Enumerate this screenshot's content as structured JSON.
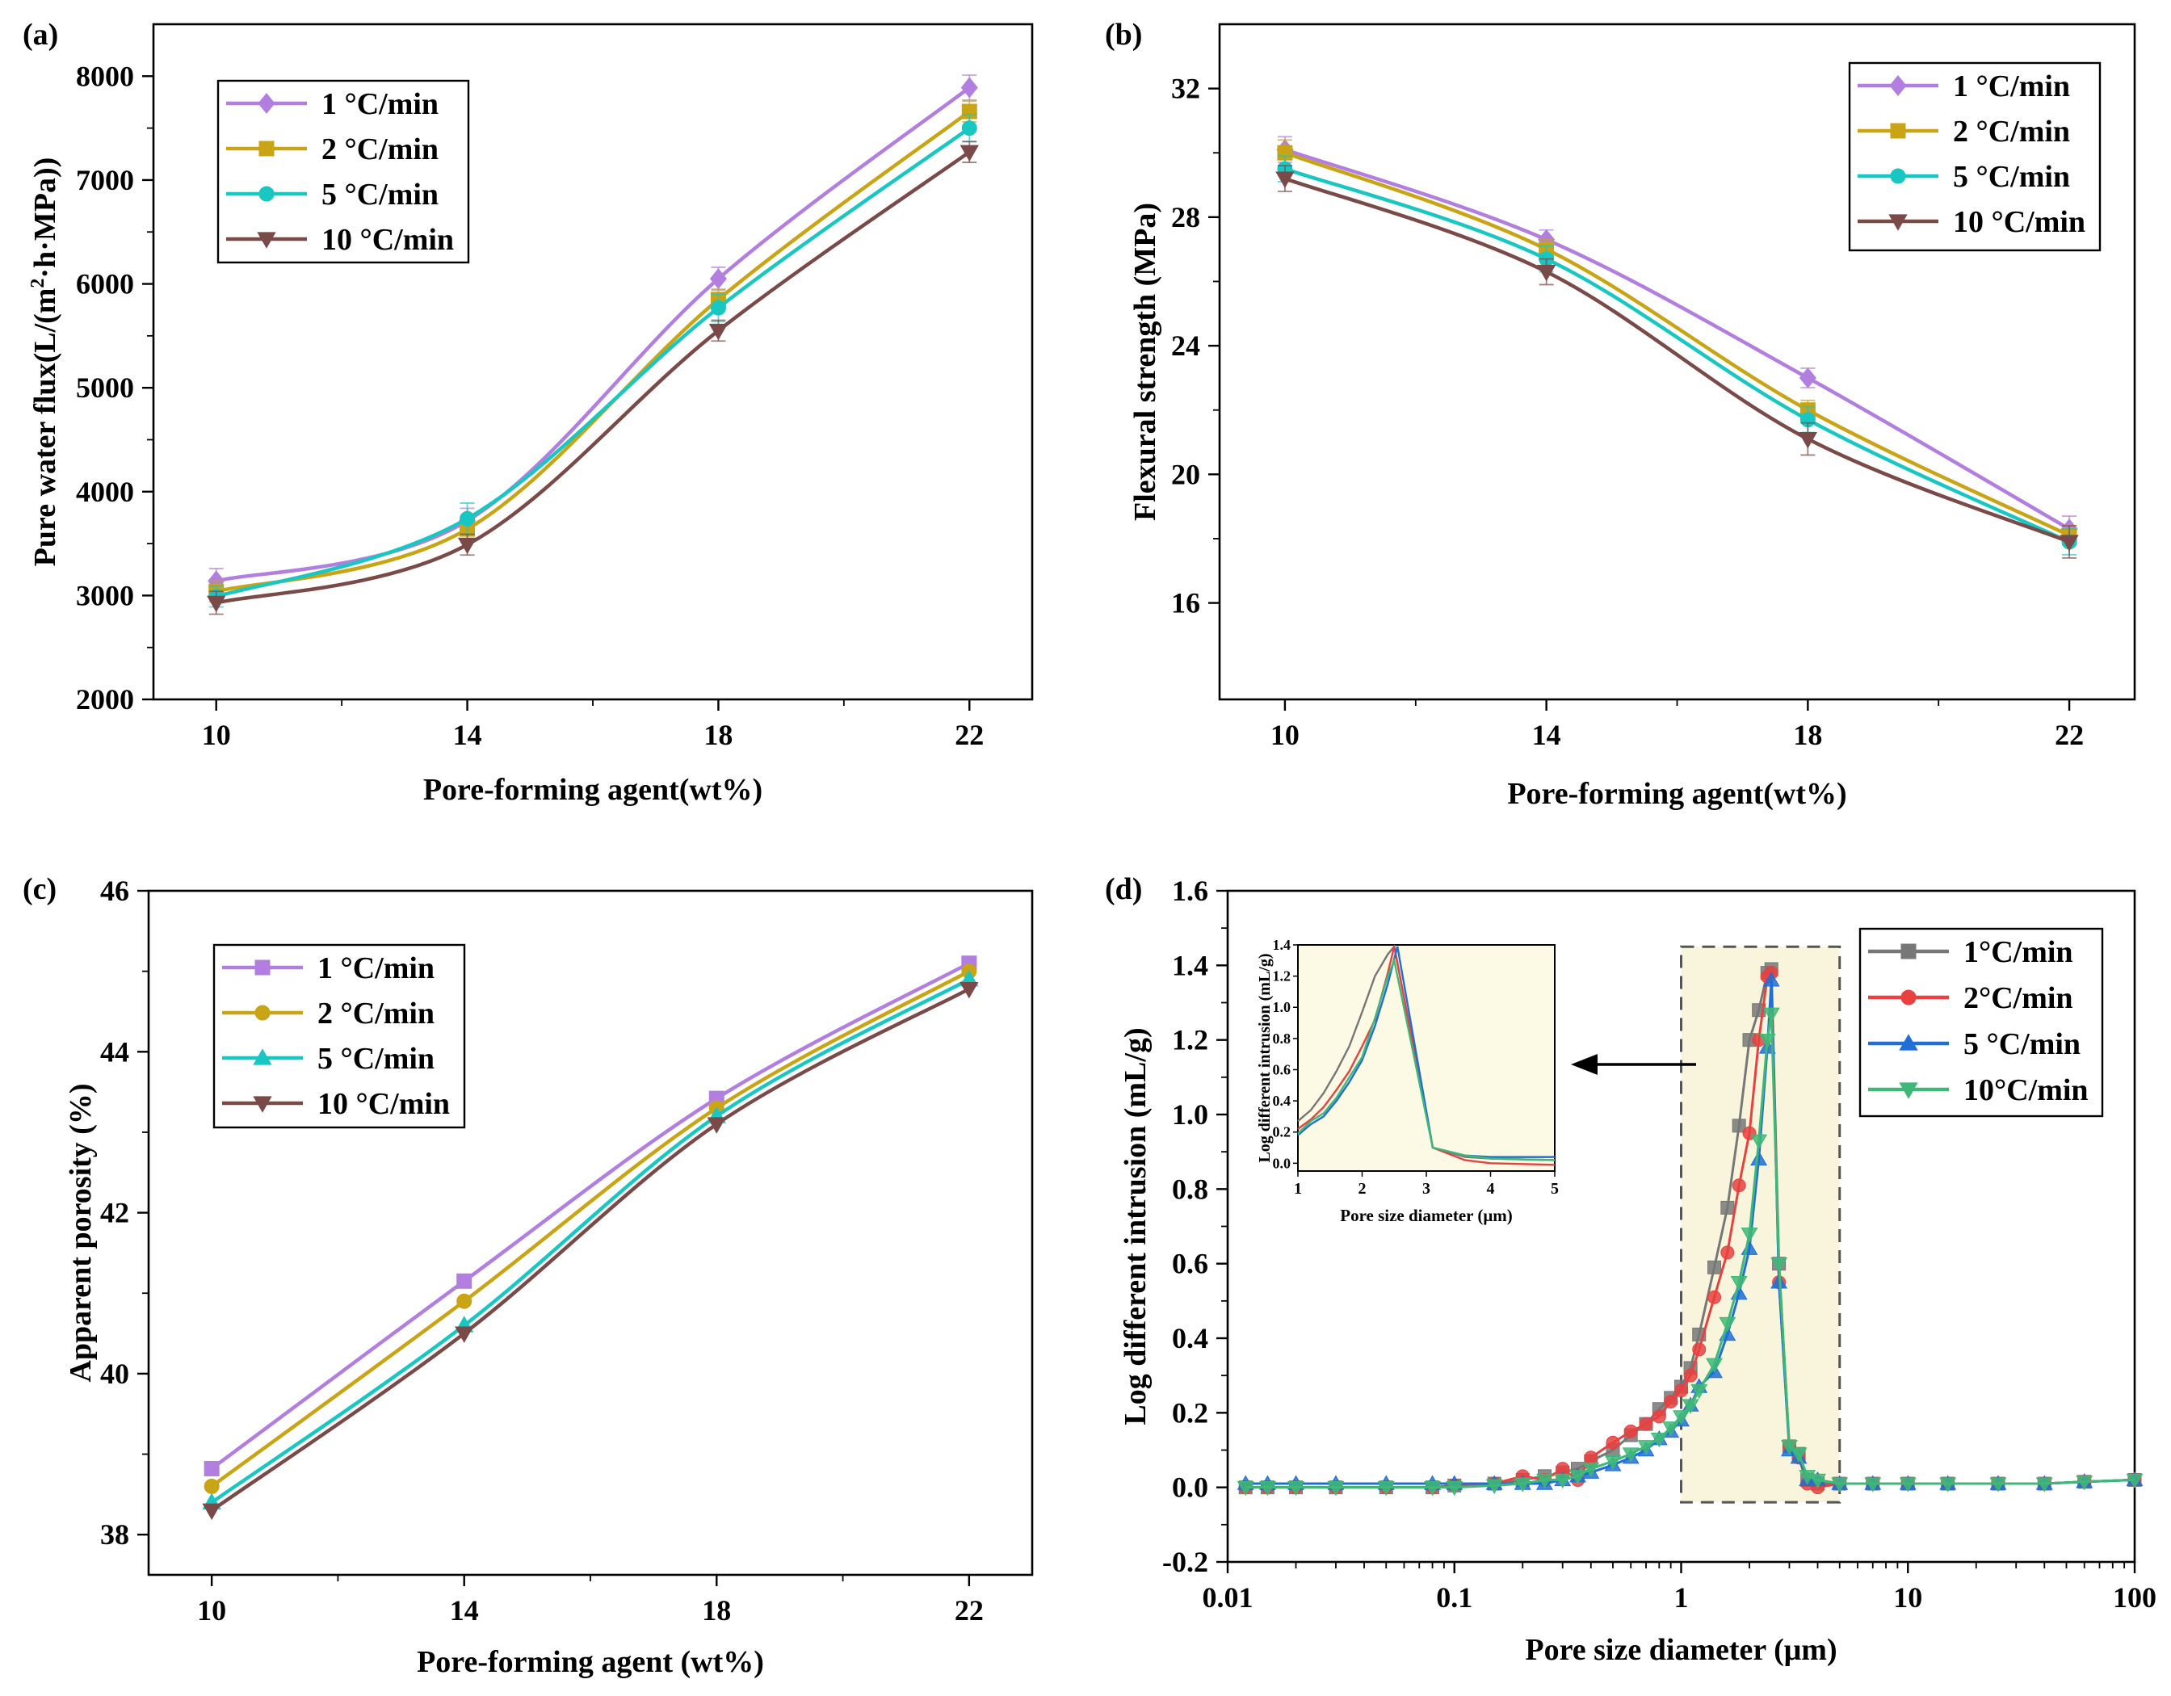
{
  "chart_data": [
    {
      "panel": "(a)",
      "type": "line",
      "xlabel": "Pore-forming agent(wt%)",
      "ylabel": "Pure water flux(L/(m²·h·MPa))",
      "ylabel_parts": [
        "Pure water flux(L/(m",
        "2",
        "·h·MPa))"
      ],
      "x": [
        10,
        14,
        18,
        22
      ],
      "xlim": [
        9,
        23
      ],
      "ylim": [
        2000,
        8500
      ],
      "xticks": [
        10,
        14,
        18,
        22
      ],
      "yticks": [
        2000,
        3000,
        4000,
        5000,
        6000,
        7000,
        8000
      ],
      "legend_position": "top-left",
      "series": [
        {
          "name": "1 °C/min",
          "values": [
            3140,
            3720,
            6050,
            7890
          ],
          "err": [
            120,
            120,
            110,
            120
          ],
          "color": "#b27fe0",
          "marker": "diamond"
        },
        {
          "name": "2 °C/min",
          "values": [
            3040,
            3640,
            5850,
            7660
          ],
          "err": [
            100,
            100,
            100,
            100
          ],
          "color": "#c9a414",
          "marker": "square"
        },
        {
          "name": "5 °C/min",
          "values": [
            2990,
            3740,
            5770,
            7500
          ],
          "err": [
            100,
            150,
            130,
            130
          ],
          "color": "#19c7c2",
          "marker": "circle"
        },
        {
          "name": "10 °C/min",
          "values": [
            2930,
            3490,
            5550,
            7270
          ],
          "err": [
            110,
            100,
            100,
            100
          ],
          "color": "#7a4a48",
          "marker": "triangle-down"
        }
      ]
    },
    {
      "panel": "(b)",
      "type": "line",
      "xlabel": "Pore-forming agent(wt%)",
      "ylabel": "Flexural strength (MPa)",
      "x": [
        10,
        14,
        18,
        22
      ],
      "xlim": [
        9,
        23
      ],
      "ylim": [
        13,
        34
      ],
      "xticks": [
        10,
        14,
        18,
        22
      ],
      "yticks": [
        16,
        20,
        24,
        28,
        32
      ],
      "legend_position": "top-right",
      "series": [
        {
          "name": "1 °C/min",
          "values": [
            30.1,
            27.3,
            23.0,
            18.3
          ],
          "err": [
            0.4,
            0.3,
            0.3,
            0.4
          ],
          "color": "#b27fe0",
          "marker": "diamond"
        },
        {
          "name": "2 °C/min",
          "values": [
            30.0,
            27.0,
            22.0,
            18.1
          ],
          "err": [
            0.4,
            0.3,
            0.3,
            0.3
          ],
          "color": "#c9a414",
          "marker": "square"
        },
        {
          "name": "5 °C/min",
          "values": [
            29.5,
            26.7,
            21.7,
            17.9
          ],
          "err": [
            0.4,
            0.4,
            0.4,
            0.4
          ],
          "color": "#19c7c2",
          "marker": "circle"
        },
        {
          "name": "10 °C/min",
          "values": [
            29.2,
            26.3,
            21.1,
            17.9
          ],
          "err": [
            0.4,
            0.4,
            0.5,
            0.5
          ],
          "color": "#7a4a48",
          "marker": "triangle-down"
        }
      ]
    },
    {
      "panel": "(c)",
      "type": "line",
      "xlabel": "Pore-forming agent (wt%)",
      "ylabel": "Apparent porosity (%)",
      "x": [
        10,
        14,
        18,
        22
      ],
      "xlim": [
        9,
        23
      ],
      "ylim": [
        37.5,
        46
      ],
      "xticks": [
        10,
        14,
        18,
        22
      ],
      "yticks": [
        38,
        40,
        42,
        44,
        46
      ],
      "legend_position": "top-left",
      "series": [
        {
          "name": "1 °C/min",
          "values": [
            38.82,
            41.15,
            43.42,
            45.1
          ],
          "color": "#b27fe0",
          "marker": "square"
        },
        {
          "name": "2 °C/min",
          "values": [
            38.6,
            40.9,
            43.3,
            45.0
          ],
          "color": "#c9a414",
          "marker": "circle"
        },
        {
          "name": "5 °C/min",
          "values": [
            38.4,
            40.6,
            43.2,
            44.9
          ],
          "color": "#19c7c2",
          "marker": "triangle-up"
        },
        {
          "name": "10 °C/min",
          "values": [
            38.3,
            40.5,
            43.1,
            44.78
          ],
          "color": "#7a4a48",
          "marker": "triangle-down"
        }
      ]
    },
    {
      "panel": "(d)",
      "type": "line",
      "xscale": "log",
      "xlabel": "Pore size diameter (μm)",
      "ylabel": "Log different intrusion (mL/g)",
      "xlim": [
        0.01,
        100
      ],
      "ylim": [
        -0.2,
        1.6
      ],
      "xticks": [
        0.01,
        0.1,
        1,
        10,
        100
      ],
      "xtick_labels": [
        "0.01",
        "0.1",
        "1",
        "10",
        "100"
      ],
      "yticks": [
        -0.2,
        0.0,
        0.2,
        0.4,
        0.6,
        0.8,
        1.0,
        1.2,
        1.4,
        1.6
      ],
      "ytick_labels": [
        "-0.2",
        "0.0",
        "0.2",
        "0.4",
        "0.6",
        "0.8",
        "1.0",
        "1.2",
        "1.4",
        "1.6"
      ],
      "legend_position": "top-right",
      "highlight_region": {
        "x": [
          1,
          5
        ],
        "y": [
          -0.04,
          1.45
        ],
        "color": "#f8f5dc"
      },
      "series": [
        {
          "name": "1°C/min",
          "color": "#777777",
          "marker": "square",
          "x": [
            0.012,
            0.015,
            0.02,
            0.03,
            0.05,
            0.08,
            0.1,
            0.15,
            0.2,
            0.25,
            0.3,
            0.35,
            0.4,
            0.5,
            0.6,
            0.7,
            0.8,
            0.9,
            1.0,
            1.1,
            1.2,
            1.4,
            1.6,
            1.8,
            2.0,
            2.2,
            2.4,
            2.5,
            2.7,
            3.0,
            3.3,
            3.6,
            4.0,
            5.0,
            7.0,
            10,
            15,
            25,
            40,
            60,
            100
          ],
          "y": [
            0.0,
            0.0,
            0.0,
            0.0,
            0.0,
            0.0,
            0.005,
            0.01,
            0.02,
            0.03,
            0.04,
            0.05,
            0.07,
            0.1,
            0.14,
            0.17,
            0.21,
            0.24,
            0.27,
            0.32,
            0.41,
            0.59,
            0.75,
            0.97,
            1.2,
            1.28,
            1.38,
            1.39,
            0.6,
            0.11,
            0.09,
            0.02,
            0.01,
            0.01,
            0.01,
            0.01,
            0.01,
            0.01,
            0.01,
            0.015,
            0.02
          ]
        },
        {
          "name": "2°C/min",
          "color": "#e8413f",
          "marker": "circle",
          "x": [
            0.012,
            0.015,
            0.02,
            0.03,
            0.05,
            0.08,
            0.1,
            0.15,
            0.2,
            0.25,
            0.3,
            0.35,
            0.4,
            0.5,
            0.6,
            0.7,
            0.8,
            0.9,
            1.0,
            1.1,
            1.2,
            1.4,
            1.6,
            1.8,
            2.0,
            2.2,
            2.4,
            2.5,
            2.7,
            3.0,
            3.3,
            3.6,
            4.0,
            5.0,
            7.0,
            10,
            15,
            25,
            40,
            60,
            100
          ],
          "y": [
            0.0,
            0.0,
            0.0,
            0.0,
            0.0,
            0.0,
            0.005,
            0.01,
            0.03,
            0.02,
            0.05,
            0.02,
            0.08,
            0.12,
            0.15,
            0.17,
            0.19,
            0.23,
            0.26,
            0.3,
            0.37,
            0.51,
            0.63,
            0.81,
            0.95,
            1.2,
            1.37,
            1.38,
            0.55,
            0.11,
            0.08,
            0.01,
            0.0,
            0.01,
            0.01,
            0.01,
            0.01,
            0.01,
            0.01,
            0.015,
            0.02
          ]
        },
        {
          "name": "5 °C/min",
          "color": "#1f6fd6",
          "marker": "triangle-up",
          "x": [
            0.012,
            0.015,
            0.02,
            0.03,
            0.05,
            0.08,
            0.1,
            0.15,
            0.2,
            0.25,
            0.3,
            0.35,
            0.4,
            0.5,
            0.6,
            0.7,
            0.8,
            0.9,
            1.0,
            1.1,
            1.2,
            1.4,
            1.6,
            1.8,
            2.0,
            2.2,
            2.4,
            2.5,
            2.7,
            3.0,
            3.3,
            3.6,
            4.0,
            5.0,
            7.0,
            10,
            15,
            25,
            40,
            60,
            100
          ],
          "y": [
            0.01,
            0.01,
            0.01,
            0.01,
            0.01,
            0.01,
            0.01,
            0.01,
            0.01,
            0.01,
            0.02,
            0.03,
            0.04,
            0.06,
            0.08,
            0.1,
            0.13,
            0.15,
            0.18,
            0.22,
            0.27,
            0.31,
            0.41,
            0.52,
            0.64,
            0.88,
            1.18,
            1.36,
            0.55,
            0.1,
            0.08,
            0.02,
            0.02,
            0.01,
            0.01,
            0.01,
            0.01,
            0.01,
            0.01,
            0.015,
            0.02
          ]
        },
        {
          "name": "10°C/min",
          "color": "#3fb877",
          "marker": "triangle-down",
          "x": [
            0.012,
            0.015,
            0.02,
            0.03,
            0.05,
            0.08,
            0.1,
            0.15,
            0.2,
            0.25,
            0.3,
            0.35,
            0.4,
            0.5,
            0.6,
            0.7,
            0.8,
            0.9,
            1.0,
            1.1,
            1.2,
            1.4,
            1.6,
            1.8,
            2.0,
            2.2,
            2.4,
            2.5,
            2.7,
            3.0,
            3.3,
            3.6,
            4.0,
            5.0,
            7.0,
            10,
            15,
            25,
            40,
            60,
            100
          ],
          "y": [
            0.0,
            0.0,
            0.0,
            0.0,
            0.0,
            0.0,
            0.0,
            0.005,
            0.01,
            0.02,
            0.02,
            0.03,
            0.05,
            0.07,
            0.09,
            0.11,
            0.13,
            0.16,
            0.19,
            0.22,
            0.26,
            0.33,
            0.44,
            0.55,
            0.68,
            0.93,
            1.2,
            1.27,
            0.6,
            0.11,
            0.09,
            0.03,
            0.02,
            0.01,
            0.01,
            0.01,
            0.01,
            0.01,
            0.01,
            0.015,
            0.02
          ]
        }
      ],
      "inset": {
        "type": "line",
        "xlabel": "Pore size diameter (μm)",
        "ylabel": "Log different intrusion (mL/g)",
        "xlim": [
          1,
          5
        ],
        "ylim": [
          -0.05,
          1.4
        ],
        "xticks": [
          1,
          2,
          3,
          4,
          5
        ],
        "yticks": [
          0.0,
          0.2,
          0.4,
          0.6,
          0.8,
          1.0,
          1.2,
          1.4
        ],
        "ytick_labels": [
          "0.0",
          "0.2",
          "0.4",
          "0.6",
          "0.8",
          "1.0",
          "1.2",
          "1.4"
        ],
        "series": [
          {
            "color": "#777777",
            "x": [
              1.0,
              1.2,
              1.4,
              1.6,
              1.8,
              2.0,
              2.2,
              2.4,
              2.5,
              3.1,
              3.6,
              4.0,
              5.0
            ],
            "y": [
              0.27,
              0.34,
              0.45,
              0.59,
              0.75,
              0.97,
              1.2,
              1.34,
              1.39,
              0.1,
              0.04,
              0.03,
              0.02
            ]
          },
          {
            "color": "#e8413f",
            "x": [
              1.0,
              1.2,
              1.4,
              1.6,
              1.8,
              2.0,
              2.2,
              2.4,
              2.5,
              3.1,
              3.6,
              4.0,
              5.0
            ],
            "y": [
              0.22,
              0.28,
              0.36,
              0.47,
              0.59,
              0.75,
              0.92,
              1.22,
              1.39,
              0.1,
              0.02,
              0.0,
              -0.01
            ]
          },
          {
            "color": "#1f6fd6",
            "x": [
              1.0,
              1.2,
              1.4,
              1.6,
              1.8,
              2.0,
              2.2,
              2.4,
              2.55,
              3.1,
              3.6,
              4.0,
              5.0
            ],
            "y": [
              0.18,
              0.25,
              0.3,
              0.4,
              0.52,
              0.66,
              0.88,
              1.15,
              1.39,
              0.1,
              0.05,
              0.04,
              0.04
            ]
          },
          {
            "color": "#3fb877",
            "x": [
              1.0,
              1.2,
              1.4,
              1.6,
              1.8,
              2.0,
              2.2,
              2.4,
              2.5,
              3.1,
              3.6,
              4.0,
              5.0
            ],
            "y": [
              0.19,
              0.27,
              0.32,
              0.42,
              0.55,
              0.68,
              0.93,
              1.2,
              1.3,
              0.1,
              0.05,
              0.03,
              0.02
            ]
          }
        ]
      }
    }
  ]
}
